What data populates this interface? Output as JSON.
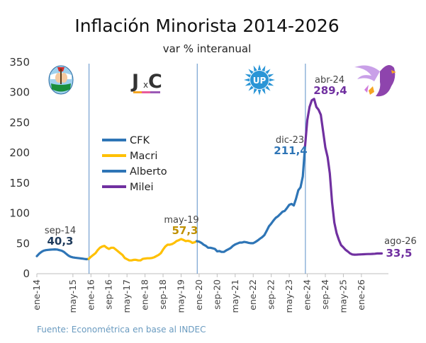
{
  "chart_data": {
    "type": "line",
    "title": "Inflación Minorista 2014-2026",
    "subtitle": "var % interanual",
    "source": "Fuente: Econométrica en base al INDEC",
    "ylim": [
      0,
      350
    ],
    "yticks": [
      0,
      50,
      100,
      150,
      200,
      250,
      300,
      350
    ],
    "xlim": [
      "2014-01",
      "2026-12"
    ],
    "xticks": [
      "ene-14",
      "may-15",
      "ene-16",
      "sep-16",
      "may-17",
      "ene-18",
      "sep-18",
      "may-19",
      "ene-20",
      "sep-20",
      "may-21",
      "ene-22",
      "sep-22",
      "may-23",
      "ene-24",
      "sep-24",
      "may-25",
      "ene-26"
    ],
    "grid": false,
    "legend_position": "left-center",
    "period_separators": [
      "2015-12",
      "2019-12",
      "2023-12"
    ],
    "series": [
      {
        "name": "CFK",
        "color": "#2e75b6",
        "points": [
          [
            "2014-01",
            29
          ],
          [
            "2014-02",
            33
          ],
          [
            "2014-03",
            36
          ],
          [
            "2014-04",
            38
          ],
          [
            "2014-05",
            39
          ],
          [
            "2014-06",
            39.5
          ],
          [
            "2014-07",
            39.8
          ],
          [
            "2014-08",
            40
          ],
          [
            "2014-09",
            40.3
          ],
          [
            "2014-10",
            40
          ],
          [
            "2014-11",
            39
          ],
          [
            "2014-12",
            38
          ],
          [
            "2015-01",
            36
          ],
          [
            "2015-02",
            33
          ],
          [
            "2015-03",
            30
          ],
          [
            "2015-04",
            28
          ],
          [
            "2015-05",
            27
          ],
          [
            "2015-06",
            26.5
          ],
          [
            "2015-07",
            26
          ],
          [
            "2015-08",
            25.5
          ],
          [
            "2015-09",
            25
          ],
          [
            "2015-10",
            24.5
          ],
          [
            "2015-11",
            24
          ],
          [
            "2015-12",
            24.5
          ]
        ]
      },
      {
        "name": "Macri",
        "color": "#ffc000",
        "points": [
          [
            "2015-12",
            24.5
          ],
          [
            "2016-01",
            28
          ],
          [
            "2016-02",
            31
          ],
          [
            "2016-03",
            34
          ],
          [
            "2016-04",
            39
          ],
          [
            "2016-05",
            43
          ],
          [
            "2016-06",
            45
          ],
          [
            "2016-07",
            46
          ],
          [
            "2016-08",
            43
          ],
          [
            "2016-09",
            41
          ],
          [
            "2016-10",
            43
          ],
          [
            "2016-11",
            43
          ],
          [
            "2016-12",
            40
          ],
          [
            "2017-01",
            37
          ],
          [
            "2017-02",
            34
          ],
          [
            "2017-03",
            31
          ],
          [
            "2017-04",
            26
          ],
          [
            "2017-05",
            24
          ],
          [
            "2017-06",
            22
          ],
          [
            "2017-07",
            22
          ],
          [
            "2017-08",
            23
          ],
          [
            "2017-09",
            23
          ],
          [
            "2017-10",
            22
          ],
          [
            "2017-11",
            22
          ],
          [
            "2017-12",
            24.5
          ],
          [
            "2018-01",
            25
          ],
          [
            "2018-02",
            25.5
          ],
          [
            "2018-03",
            25.5
          ],
          [
            "2018-04",
            26
          ],
          [
            "2018-05",
            27
          ],
          [
            "2018-06",
            29
          ],
          [
            "2018-07",
            31
          ],
          [
            "2018-08",
            34
          ],
          [
            "2018-09",
            40
          ],
          [
            "2018-10",
            45
          ],
          [
            "2018-11",
            48
          ],
          [
            "2018-12",
            48
          ],
          [
            "2019-01",
            49
          ],
          [
            "2019-02",
            51
          ],
          [
            "2019-03",
            54
          ],
          [
            "2019-04",
            55.5
          ],
          [
            "2019-05",
            57.3
          ],
          [
            "2019-06",
            56
          ],
          [
            "2019-07",
            54
          ],
          [
            "2019-08",
            54.5
          ],
          [
            "2019-09",
            53.5
          ],
          [
            "2019-10",
            51
          ],
          [
            "2019-11",
            52
          ],
          [
            "2019-12",
            54
          ]
        ]
      },
      {
        "name": "Alberto",
        "color": "#2e75b6",
        "points": [
          [
            "2019-12",
            54
          ],
          [
            "2020-01",
            53
          ],
          [
            "2020-02",
            51
          ],
          [
            "2020-03",
            48
          ],
          [
            "2020-04",
            46
          ],
          [
            "2020-05",
            43
          ],
          [
            "2020-06",
            43
          ],
          [
            "2020-07",
            42
          ],
          [
            "2020-08",
            41
          ],
          [
            "2020-09",
            37
          ],
          [
            "2020-10",
            37.5
          ],
          [
            "2020-11",
            36
          ],
          [
            "2020-12",
            36
          ],
          [
            "2021-01",
            38.5
          ],
          [
            "2021-02",
            40.5
          ],
          [
            "2021-03",
            42.5
          ],
          [
            "2021-04",
            46
          ],
          [
            "2021-05",
            48.5
          ],
          [
            "2021-06",
            50
          ],
          [
            "2021-07",
            51.5
          ],
          [
            "2021-08",
            51.5
          ],
          [
            "2021-09",
            52.5
          ],
          [
            "2021-10",
            52
          ],
          [
            "2021-11",
            51
          ],
          [
            "2021-12",
            50.5
          ],
          [
            "2022-01",
            50.5
          ],
          [
            "2022-02",
            52.5
          ],
          [
            "2022-03",
            55
          ],
          [
            "2022-04",
            58
          ],
          [
            "2022-05",
            60.5
          ],
          [
            "2022-06",
            64
          ],
          [
            "2022-07",
            71
          ],
          [
            "2022-08",
            78.5
          ],
          [
            "2022-09",
            83
          ],
          [
            "2022-10",
            88
          ],
          [
            "2022-11",
            92.5
          ],
          [
            "2022-12",
            95
          ],
          [
            "2023-01",
            98.8
          ],
          [
            "2023-02",
            102.5
          ],
          [
            "2023-03",
            104
          ],
          [
            "2023-04",
            108.8
          ],
          [
            "2023-05",
            114
          ],
          [
            "2023-06",
            115.5
          ],
          [
            "2023-07",
            113
          ],
          [
            "2023-08",
            124
          ],
          [
            "2023-09",
            138
          ],
          [
            "2023-10",
            143
          ],
          [
            "2023-11",
            161
          ],
          [
            "2023-12",
            211.4
          ]
        ]
      },
      {
        "name": "Milei",
        "color": "#7030a0",
        "points": [
          [
            "2023-12",
            211.4
          ],
          [
            "2024-01",
            254
          ],
          [
            "2024-02",
            276
          ],
          [
            "2024-03",
            287
          ],
          [
            "2024-04",
            289.4
          ],
          [
            "2024-05",
            276
          ],
          [
            "2024-06",
            271.5
          ],
          [
            "2024-07",
            263
          ],
          [
            "2024-08",
            236
          ],
          [
            "2024-09",
            209
          ],
          [
            "2024-10",
            193
          ],
          [
            "2024-11",
            166
          ],
          [
            "2024-12",
            118
          ],
          [
            "2025-01",
            84.5
          ],
          [
            "2025-02",
            66.9
          ],
          [
            "2025-03",
            55.9
          ],
          [
            "2025-04",
            47.3
          ],
          [
            "2025-05",
            43.5
          ],
          [
            "2025-06",
            39.4
          ],
          [
            "2025-07",
            36.6
          ],
          [
            "2025-08",
            33.6
          ],
          [
            "2025-09",
            31.8
          ],
          [
            "2025-10",
            31.5
          ],
          [
            "2025-11",
            31.6
          ],
          [
            "2025-12",
            31.8
          ],
          [
            "2026-01",
            32
          ],
          [
            "2026-02",
            32.2
          ],
          [
            "2026-03",
            32.4
          ],
          [
            "2026-04",
            32.5
          ],
          [
            "2026-05",
            32.6
          ],
          [
            "2026-06",
            32.8
          ],
          [
            "2026-07",
            33
          ],
          [
            "2026-08",
            33.5
          ],
          [
            "2026-09",
            33.5
          ],
          [
            "2026-10",
            33.5
          ]
        ]
      }
    ],
    "annotations": [
      {
        "date_label": "sep-14",
        "value_label": "40,3",
        "x": "2014-09",
        "y": 40.3,
        "color": "#1f3b5c"
      },
      {
        "date_label": "may-19",
        "value_label": "57,3",
        "x": "2019-05",
        "y": 57.3,
        "color": "#bf9000"
      },
      {
        "date_label": "dic-23",
        "value_label": "211,4",
        "x": "2023-12",
        "y": 211.4,
        "color": "#2e75b6"
      },
      {
        "date_label": "abr-24",
        "value_label": "289,4",
        "x": "2024-04",
        "y": 289.4,
        "color": "#7030a0"
      },
      {
        "date_label": "ago-26",
        "value_label": "33,5",
        "x": "2026-08",
        "y": 33.5,
        "color": "#7030a0"
      }
    ],
    "logos": [
      {
        "name": "pj-shield-logo"
      },
      {
        "name": "jxc-logo",
        "text": "JxC"
      },
      {
        "name": "up-logo",
        "text": "UP"
      },
      {
        "name": "lla-eagle-logo"
      }
    ]
  }
}
